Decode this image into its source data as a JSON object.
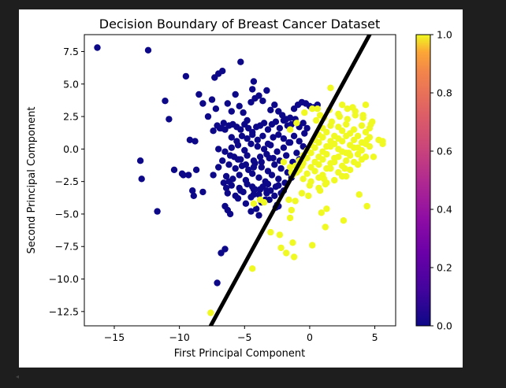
{
  "chart_data": {
    "type": "scatter",
    "title": "Decision Boundary of Breast Cancer Dataset",
    "xlabel": "First Principal Component",
    "ylabel": "Second Principal Component",
    "xlim": [
      -17.3,
      6.6
    ],
    "ylim": [
      -13.6,
      8.8
    ],
    "xticks": [
      -15,
      -10,
      -5,
      0,
      5
    ],
    "xtick_labels": [
      "−15",
      "−10",
      "−5",
      "0",
      "5"
    ],
    "yticks": [
      7.5,
      5.0,
      2.5,
      0.0,
      -2.5,
      -5.0,
      -7.5,
      -10.0,
      -12.5
    ],
    "ytick_labels": [
      "7.5",
      "5.0",
      "2.5",
      "0.0",
      "−2.5",
      "−5.0",
      "−7.5",
      "−10.0",
      "−12.5"
    ],
    "grid": false,
    "colormap": "plasma",
    "colors": {
      "class_0": "#0d0887",
      "class_1": "#f0f921",
      "boundary": "#000000"
    },
    "colorbar": {
      "range": [
        0.0,
        1.0
      ],
      "ticks": [
        0.0,
        0.2,
        0.4,
        0.6,
        0.8,
        1.0
      ],
      "tick_labels": [
        "0.0",
        "0.2",
        "0.4",
        "0.6",
        "0.8",
        "1.0"
      ]
    },
    "decision_boundary": {
      "points": [
        [
          -7.6,
          -13.6
        ],
        [
          4.6,
          8.8
        ]
      ],
      "style": "thick black line"
    },
    "series": [
      {
        "class": 0,
        "color": "#0d0887",
        "x": [
          -16.3,
          -12.4,
          -9.5,
          -7.3,
          -7.0,
          -6.7,
          -5.3,
          -4.3,
          -4.4,
          -11.1,
          -10.8,
          -13.0,
          -12.9,
          -11.7,
          -10.4,
          -9.3,
          -9.0,
          -9.2,
          -8.8,
          -8.5,
          -8.2,
          -7.8,
          -7.5,
          -7.2,
          -6.9,
          -6.6,
          -6.3,
          -6.0,
          -5.7,
          -5.4,
          -5.1,
          -4.8,
          -4.5,
          -4.2,
          -3.9,
          -3.6,
          -3.3,
          -3.0,
          -2.7,
          -2.4,
          -2.1,
          -1.8,
          -1.5,
          -1.2,
          -0.9,
          -0.6,
          -0.3,
          0.0,
          0.3,
          0.6,
          -7.4,
          -7.1,
          -6.8,
          -6.5,
          -6.2,
          -5.9,
          -5.6,
          -5.3,
          -5.0,
          -4.7,
          -4.4,
          -4.1,
          -3.8,
          -3.5,
          -3.2,
          -2.9,
          -2.6,
          -2.3,
          -2.0,
          -1.7,
          -1.4,
          -1.1,
          -0.8,
          -0.5,
          -0.2,
          -6.0,
          -5.6,
          -5.2,
          -4.8,
          -4.4,
          -4.0,
          -3.6,
          -3.2,
          -2.8,
          -2.4,
          -2.0,
          -1.6,
          -1.2,
          -0.8,
          -0.4,
          -7.0,
          -6.5,
          -6.0,
          -5.5,
          -5.0,
          -4.5,
          -4.0,
          -3.5,
          -3.0,
          -2.5,
          -2.0,
          -1.5,
          -1.0,
          -0.5,
          -5.8,
          -5.3,
          -4.8,
          -4.3,
          -3.8,
          -3.3,
          -2.8,
          -2.3,
          -1.8,
          -1.3,
          -0.8,
          -6.2,
          -5.7,
          -5.2,
          -4.7,
          -4.2,
          -3.7,
          -3.2,
          -2.7,
          -2.2,
          -1.7,
          -6.4,
          -5.9,
          -5.4,
          -4.9,
          -4.4,
          -3.9,
          -3.4,
          -2.9,
          -2.4,
          -1.9,
          -1.4,
          -6.6,
          -6.0,
          -5.4,
          -4.8,
          -4.2,
          -3.6,
          -3.0,
          -2.4,
          -6.3,
          -5.7,
          -5.1,
          -4.5,
          -3.9,
          -3.3,
          -2.7,
          -6.7,
          -6.1,
          -5.5,
          -4.9,
          -4.3,
          -3.7,
          -3.1,
          -5.5,
          -4.9,
          -4.3,
          -3.7,
          -3.1,
          -2.5,
          -2.2,
          -4.4,
          -3.8,
          -3.2,
          -2.6,
          -2.0,
          -7.4,
          -6.4,
          -5.3,
          -4.3,
          -3.3,
          -4.5,
          -3.9,
          -2.6,
          -2.4,
          -8.9,
          -8.7,
          -8.2,
          -9.8,
          -9.7,
          -7.1,
          -6.8,
          -6.5,
          -6.3,
          -6.1,
          -6.5,
          -6.2,
          -7.0,
          -3.4,
          -4.1
        ],
        "y": [
          7.8,
          7.6,
          5.6,
          5.5,
          5.8,
          6.0,
          6.7,
          5.2,
          4.6,
          3.7,
          2.3,
          -0.9,
          -2.3,
          -4.8,
          -1.6,
          -2.0,
          -3.2,
          0.7,
          0.6,
          4.2,
          3.5,
          2.5,
          3.8,
          3.1,
          1.6,
          2.0,
          3.5,
          2.9,
          4.2,
          3.3,
          2.8,
          2.2,
          3.6,
          3.9,
          4.1,
          3.7,
          4.5,
          3.0,
          3.4,
          2.9,
          2.6,
          2.3,
          2.4,
          3.1,
          3.4,
          3.6,
          3.5,
          3.3,
          3.2,
          3.4,
          1.4,
          1.8,
          1.6,
          1.5,
          1.8,
          1.9,
          1.7,
          1.5,
          1.9,
          1.6,
          1.3,
          1.7,
          1.8,
          2.0,
          1.5,
          1.9,
          2.1,
          1.6,
          2.2,
          1.8,
          1.9,
          2.3,
          1.7,
          2.0,
          1.6,
          0.9,
          0.6,
          1.0,
          0.8,
          1.1,
          0.7,
          1.0,
          0.4,
          0.9,
          1.1,
          0.8,
          0.5,
          1.0,
          0.6,
          1.2,
          0.0,
          -0.2,
          0.1,
          0.3,
          -0.1,
          0.4,
          0.2,
          0.0,
          0.3,
          -0.2,
          0.1,
          0.5,
          -0.3,
          0.2,
          -0.6,
          -0.8,
          -0.5,
          -0.9,
          -0.6,
          -0.4,
          -0.7,
          -0.9,
          -0.5,
          -1.0,
          -0.8,
          -1.2,
          -1.5,
          -1.3,
          -1.6,
          -1.1,
          -1.4,
          -1.7,
          -1.2,
          -1.5,
          -1.8,
          -2.1,
          -2.3,
          -2.0,
          -2.4,
          -1.9,
          -2.2,
          -2.5,
          -2.0,
          -2.3,
          -2.6,
          -2.2,
          -2.6,
          -2.8,
          -3.0,
          -2.7,
          -3.1,
          -2.9,
          -3.2,
          -2.8,
          -3.4,
          -3.6,
          -3.3,
          -3.7,
          -3.5,
          -3.2,
          -3.6,
          -0.9,
          -0.5,
          -0.8,
          -1.2,
          -1.4,
          -1.0,
          -0.7,
          -3.8,
          -4.2,
          -3.5,
          -4.1,
          -3.9,
          -4.3,
          -3.4,
          -2.9,
          -3.1,
          -2.7,
          -2.9,
          -3.2,
          -2.0,
          -3.0,
          -3.2,
          -3.1,
          -3.4,
          -4.8,
          -5.1,
          -4.5,
          -4.4,
          -3.6,
          -1.6,
          -3.3,
          -1.9,
          -2.0,
          -10.3,
          -8.0,
          -7.7,
          -4.7,
          -5.0,
          -4.4,
          -2.5,
          -1.4,
          -3.9,
          -4.6
        ],
        "note": "approximate readings"
      },
      {
        "class": 1,
        "color": "#f0f921",
        "x": [
          1.6,
          2.5,
          3.3,
          4.3,
          4.8,
          5.3,
          5.6,
          4.9,
          4.1,
          3.5,
          2.9,
          2.2,
          1.5,
          0.8,
          0.2,
          -0.4,
          -1.0,
          -1.5,
          0.5,
          1.1,
          1.7,
          2.3,
          2.9,
          3.5,
          4.1,
          4.7,
          1.0,
          1.6,
          2.2,
          2.8,
          3.4,
          4.0,
          4.6,
          0.7,
          1.3,
          1.9,
          2.5,
          3.1,
          3.7,
          4.3,
          0.4,
          1.0,
          1.6,
          2.2,
          2.8,
          3.4,
          4.0,
          4.6,
          0.1,
          0.7,
          1.3,
          1.9,
          2.5,
          3.1,
          3.7,
          4.3,
          -0.2,
          0.4,
          1.0,
          1.6,
          2.2,
          2.8,
          3.4,
          4.0,
          4.6,
          -0.5,
          0.1,
          0.7,
          1.3,
          1.9,
          2.5,
          3.1,
          3.7,
          4.3,
          -0.8,
          -0.2,
          0.4,
          1.0,
          1.6,
          2.2,
          2.8,
          3.4,
          4.0,
          -1.1,
          -0.5,
          0.1,
          0.7,
          1.3,
          1.9,
          2.5,
          3.1,
          3.7,
          -1.4,
          -0.8,
          -0.2,
          0.4,
          1.0,
          1.6,
          2.2,
          2.8,
          -0.5,
          0.1,
          0.7,
          1.3,
          1.9,
          2.5,
          -2.0,
          -1.5,
          -1.0,
          0.0,
          0.7,
          1.2,
          -3.0,
          -2.3,
          -1.3,
          0.2,
          1.2,
          2.6,
          4.4,
          3.8,
          -2.2,
          -1.8,
          -1.2,
          -1.5,
          -1.1,
          -0.6,
          -0.1,
          0.9,
          1.3,
          -1.4,
          -1.6,
          -3.8,
          -4.3,
          -3.5,
          -1.3,
          -0.6,
          0.8,
          1.1,
          3.0,
          5.6,
          4.4,
          2.7,
          0.6,
          -7.6,
          -4.4
        ],
        "y": [
          4.7,
          3.4,
          3.2,
          3.4,
          2.1,
          0.7,
          0.4,
          -0.6,
          2.6,
          2.9,
          3.1,
          2.7,
          3.0,
          2.6,
          3.1,
          2.8,
          2.0,
          1.5,
          2.2,
          2.4,
          2.1,
          2.5,
          2.3,
          2.6,
          2.4,
          1.9,
          1.6,
          1.8,
          1.7,
          1.9,
          1.5,
          1.8,
          1.6,
          1.1,
          1.3,
          1.0,
          1.4,
          1.2,
          1.0,
          1.3,
          0.7,
          0.9,
          0.6,
          0.8,
          1.0,
          0.7,
          0.5,
          0.9,
          0.3,
          0.5,
          0.2,
          0.4,
          0.6,
          0.3,
          0.1,
          0.4,
          -0.1,
          0.1,
          -0.2,
          0.2,
          0.0,
          -0.3,
          0.1,
          -0.1,
          0.2,
          -0.5,
          -0.3,
          -0.6,
          -0.4,
          -0.7,
          -0.2,
          -0.5,
          -0.4,
          -0.6,
          -0.9,
          -0.7,
          -1.0,
          -0.8,
          -1.1,
          -0.6,
          -0.9,
          -1.0,
          -0.8,
          -1.3,
          -1.1,
          -1.4,
          -1.2,
          -1.5,
          -1.0,
          -1.3,
          -1.6,
          -1.2,
          -1.8,
          -1.6,
          -1.9,
          -1.7,
          -2.0,
          -1.5,
          -1.8,
          -2.1,
          -2.3,
          -2.5,
          -2.2,
          -2.6,
          -2.4,
          -2.1,
          -1.0,
          -1.4,
          -1.8,
          -2.8,
          -3.0,
          -2.7,
          -6.4,
          -6.6,
          -7.2,
          -7.4,
          -6.0,
          -5.5,
          -4.4,
          -3.5,
          -7.6,
          -8.0,
          -8.3,
          -5.3,
          -4.0,
          -3.4,
          -3.6,
          -4.9,
          -4.6,
          -4.7,
          -3.9,
          -3.9,
          -4.2,
          -4.1,
          -2.0,
          -1.3,
          -3.2,
          -2.3,
          -0.3,
          0.6,
          0.7,
          -1.5,
          3.1,
          -12.6,
          -9.2
        ]
      }
    ]
  }
}
